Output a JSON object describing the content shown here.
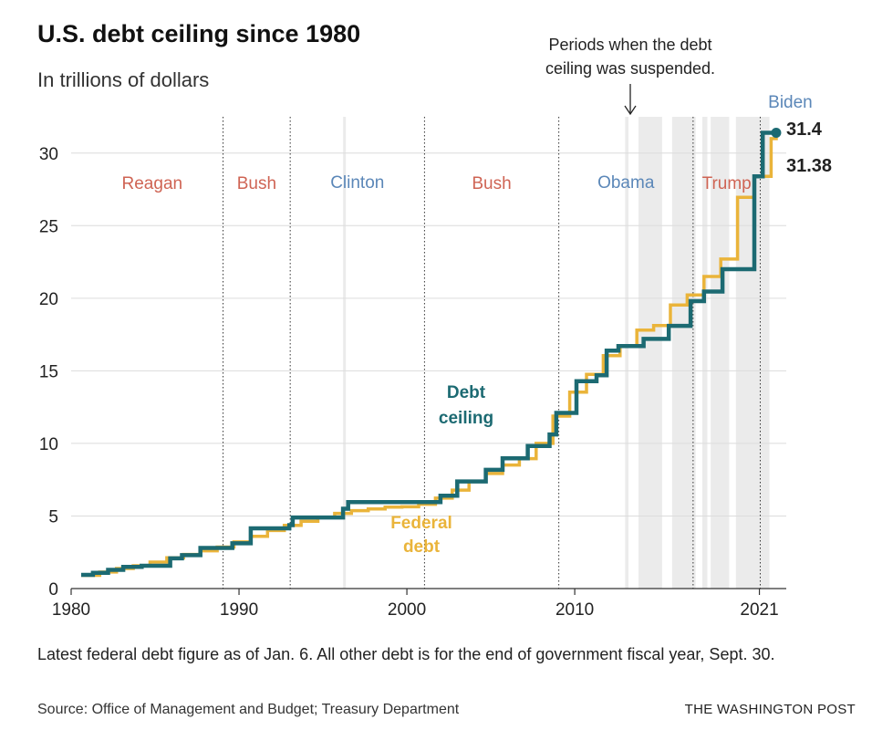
{
  "header": {
    "title": "U.S. debt ceiling since 1980",
    "subtitle": "In trillions of dollars"
  },
  "footer": {
    "note": "Latest federal debt figure as of Jan. 6. All other debt is for the end of government fiscal year, Sept. 30.",
    "source": "Source: Office of Management and Budget; Treasury Department",
    "brand": "THE WASHINGTON POST"
  },
  "colors": {
    "ceiling": "#1c6a72",
    "debt": "#eab43a",
    "republican": "#cf6454",
    "democrat": "#5b87b8",
    "suspension": "#ebebeb",
    "grid": "#dcdcdc"
  },
  "chart_data": {
    "type": "line",
    "xlim": [
      1980,
      2022.6
    ],
    "ylim": [
      0,
      32.5
    ],
    "x_ticks": [
      1980,
      1990,
      2000,
      2010,
      2021
    ],
    "y_ticks": [
      0,
      5,
      10,
      15,
      20,
      25,
      30
    ],
    "series": [
      {
        "name": "Debt ceiling",
        "label_lines": [
          "Debt",
          "ceiling"
        ],
        "step": true,
        "x": [
          1980.6,
          1981.3,
          1982.2,
          1983.1,
          1984.2,
          1985.9,
          1986.6,
          1987.7,
          1989.6,
          1990.7,
          1993.0,
          1993.2,
          1996.2,
          1996.5,
          2002.0,
          2003.0,
          2004.7,
          2005.7,
          2007.2,
          2008.5,
          2008.9,
          2010.1,
          2011.3,
          2011.9,
          2012.6,
          2014.1,
          2015.6,
          2016.9,
          2017.7,
          2018.8,
          2019.8,
          2020.7,
          2021.2,
          2022.0
        ],
        "y": [
          0.94,
          1.08,
          1.29,
          1.49,
          1.57,
          2.08,
          2.3,
          2.8,
          3.12,
          4.15,
          4.37,
          4.9,
          5.5,
          5.95,
          6.4,
          7.38,
          8.18,
          8.97,
          9.82,
          10.62,
          12.1,
          14.29,
          14.69,
          16.39,
          16.7,
          17.2,
          18.1,
          19.8,
          20.46,
          22.0,
          22.0,
          28.4,
          31.4,
          31.4
        ]
      },
      {
        "name": "Federal debt",
        "label_lines": [
          "Federal",
          "debt"
        ],
        "step": true,
        "x": [
          1980.6,
          1981.7,
          1982.7,
          1983.7,
          1984.7,
          1985.7,
          1986.7,
          1987.7,
          1988.7,
          1989.7,
          1990.7,
          1991.7,
          1992.7,
          1993.7,
          1994.7,
          1995.7,
          1996.7,
          1997.7,
          1998.7,
          1999.7,
          2000.7,
          2001.7,
          2002.7,
          2003.7,
          2004.7,
          2005.7,
          2006.7,
          2007.7,
          2008.7,
          2009.7,
          2010.7,
          2011.7,
          2012.7,
          2013.7,
          2014.7,
          2015.7,
          2016.7,
          2017.7,
          2018.7,
          2019.7,
          2020.7,
          2021.7,
          2022.0
        ],
        "y": [
          0.91,
          1.14,
          1.38,
          1.57,
          1.82,
          2.12,
          2.35,
          2.6,
          2.86,
          3.21,
          3.6,
          4.0,
          4.35,
          4.64,
          4.92,
          5.18,
          5.37,
          5.48,
          5.61,
          5.63,
          5.81,
          6.23,
          6.78,
          7.38,
          7.93,
          8.51,
          8.95,
          10.0,
          11.88,
          13.53,
          14.76,
          16.05,
          16.74,
          17.8,
          18.12,
          19.54,
          20.23,
          21.5,
          22.7,
          26.95,
          28.4,
          31.0,
          31.38
        ]
      }
    ],
    "end_labels": [
      {
        "series": "Debt ceiling",
        "text": "31.4"
      },
      {
        "series": "Federal debt",
        "text": "31.38"
      }
    ],
    "presidents": [
      {
        "name": "Reagan",
        "party": "republican",
        "start": 1980.6,
        "end": 1989.05
      },
      {
        "name": "Bush",
        "party": "republican",
        "start": 1989.05,
        "end": 1993.05
      },
      {
        "name": "Clinton",
        "party": "democrat",
        "start": 1993.05,
        "end": 2001.05
      },
      {
        "name": "Bush",
        "party": "republican",
        "start": 2001.05,
        "end": 2009.05
      },
      {
        "name": "Obama",
        "party": "democrat",
        "start": 2009.05,
        "end": 2017.05
      },
      {
        "name": "Trump",
        "party": "republican",
        "start": 2017.05,
        "end": 2021.05
      },
      {
        "name": "Biden",
        "party": "democrat",
        "start": 2021.05,
        "end": 2022.6
      }
    ],
    "suspensions": [
      [
        1996.2,
        1996.3
      ],
      [
        2013.0,
        2013.2
      ],
      [
        2013.8,
        2015.2
      ],
      [
        2015.8,
        2017.2
      ],
      [
        2017.6,
        2017.9
      ],
      [
        2018.1,
        2019.2
      ],
      [
        2019.6,
        2021.6
      ]
    ],
    "annotation": {
      "lines": [
        "Periods when the debt",
        "ceiling was suspended."
      ]
    }
  }
}
